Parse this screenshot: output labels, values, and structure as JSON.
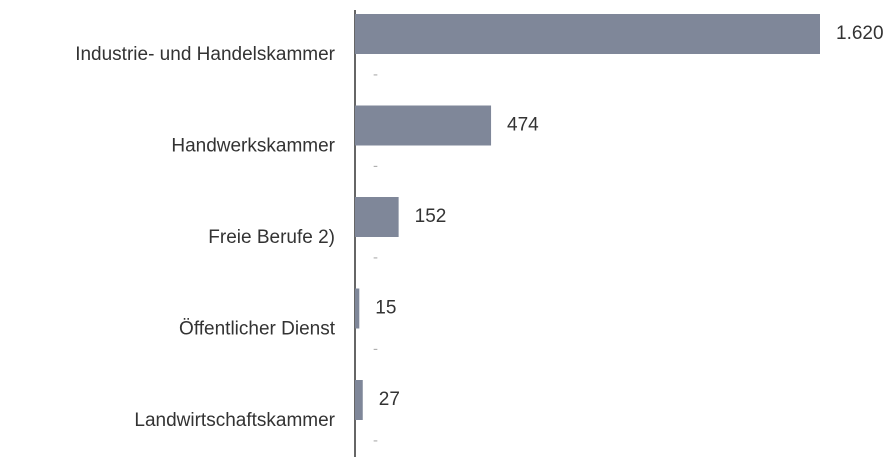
{
  "chart_data": {
    "type": "bar",
    "orientation": "horizontal",
    "categories": [
      "Industrie- und Handelskammer",
      "Handwerkskammer",
      "Freie Berufe 2)",
      "Öffentlicher Dienst",
      "Landwirtschaftskammer"
    ],
    "series": [
      {
        "color": "#7f8799",
        "values": [
          1620,
          474,
          152,
          15,
          27
        ],
        "value_labels": [
          "1.620",
          "474",
          "152",
          "15",
          "27"
        ]
      },
      {
        "color": "#b0b0b0",
        "values": [
          null,
          null,
          null,
          null,
          null
        ],
        "value_labels": [
          "-",
          "-",
          "-",
          "-",
          "-"
        ]
      }
    ]
  }
}
